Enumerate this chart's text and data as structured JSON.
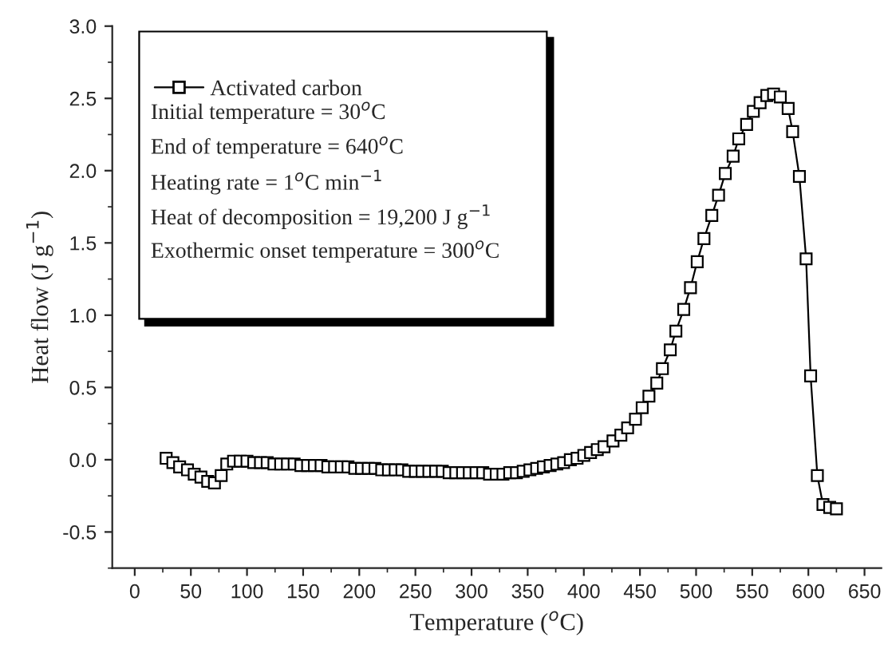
{
  "chart_data": {
    "type": "line",
    "xlabel": "Temperature ($^{o}$C)",
    "ylabel": "Heat flow (J g$^{−1}$)",
    "xlim": [
      -20,
      665
    ],
    "ylim": [
      -0.75,
      3.0
    ],
    "xticks": [
      0,
      50,
      100,
      150,
      200,
      250,
      300,
      350,
      400,
      450,
      500,
      550,
      600,
      650
    ],
    "yticks": [
      {
        "value": -0.5,
        "label": "-0.5"
      },
      {
        "value": 0,
        "label": "0.0"
      },
      {
        "value": 0.5,
        "label": "0.5"
      },
      {
        "value": 1,
        "label": "1.0"
      },
      {
        "value": 1.5,
        "label": "1.5"
      },
      {
        "value": 2,
        "label": "2.0"
      },
      {
        "value": 2.5,
        "label": "2.5"
      },
      {
        "value": 3,
        "label": "3.0"
      }
    ],
    "grid": false,
    "legend": "top left",
    "marker": "square",
    "line_style": "solid",
    "series": [
      {
        "name": "Activated carbon",
        "color": "#000000",
        "x": [
          28,
          34,
          40,
          47,
          53,
          59,
          65,
          71,
          77,
          82,
          88,
          94,
          100,
          106,
          112,
          118,
          124,
          130,
          136,
          142,
          148,
          154,
          160,
          166,
          172,
          178,
          184,
          190,
          196,
          202,
          208,
          214,
          220,
          226,
          232,
          238,
          244,
          250,
          256,
          262,
          268,
          274,
          280,
          286,
          292,
          298,
          304,
          310,
          316,
          322,
          328,
          334,
          340,
          346,
          352,
          358,
          364,
          370,
          376,
          382,
          388,
          394,
          400,
          406,
          412,
          418,
          426,
          433,
          439,
          446,
          452,
          458,
          465,
          470,
          477,
          482,
          489,
          495,
          501,
          507,
          514,
          520,
          526,
          533,
          538,
          545,
          551,
          557,
          563,
          569,
          575,
          582,
          586,
          592,
          598,
          602,
          608,
          613,
          619,
          625
        ],
        "values": [
          0.01,
          -0.02,
          -0.05,
          -0.07,
          -0.1,
          -0.12,
          -0.15,
          -0.16,
          -0.11,
          -0.03,
          -0.01,
          -0.01,
          -0.01,
          -0.02,
          -0.02,
          -0.02,
          -0.03,
          -0.03,
          -0.03,
          -0.03,
          -0.04,
          -0.04,
          -0.04,
          -0.04,
          -0.05,
          -0.05,
          -0.05,
          -0.05,
          -0.06,
          -0.06,
          -0.06,
          -0.06,
          -0.07,
          -0.07,
          -0.07,
          -0.07,
          -0.08,
          -0.08,
          -0.08,
          -0.08,
          -0.08,
          -0.08,
          -0.09,
          -0.09,
          -0.09,
          -0.09,
          -0.09,
          -0.09,
          -0.1,
          -0.1,
          -0.1,
          -0.09,
          -0.09,
          -0.08,
          -0.07,
          -0.06,
          -0.05,
          -0.04,
          -0.03,
          -0.02,
          0.0,
          0.01,
          0.03,
          0.05,
          0.07,
          0.09,
          0.13,
          0.17,
          0.22,
          0.28,
          0.36,
          0.44,
          0.53,
          0.63,
          0.76,
          0.89,
          1.04,
          1.19,
          1.37,
          1.53,
          1.69,
          1.83,
          1.98,
          2.1,
          2.22,
          2.32,
          2.41,
          2.47,
          2.52,
          2.53,
          2.51,
          2.43,
          2.27,
          1.96,
          1.39,
          0.58,
          -0.11,
          -0.31,
          -0.33,
          -0.34
        ]
      }
    ],
    "annotations": [
      "Initial temperature = 30$^{o}$C",
      "End of temperature = 640$^{o}$C",
      "Heating rate = 1$^{o}$C min$^{−1}$",
      "Heat of decomposition = 19,200 J g$^{−1}$",
      "Exothermic onset temperature = 300$^{o}$C"
    ]
  }
}
